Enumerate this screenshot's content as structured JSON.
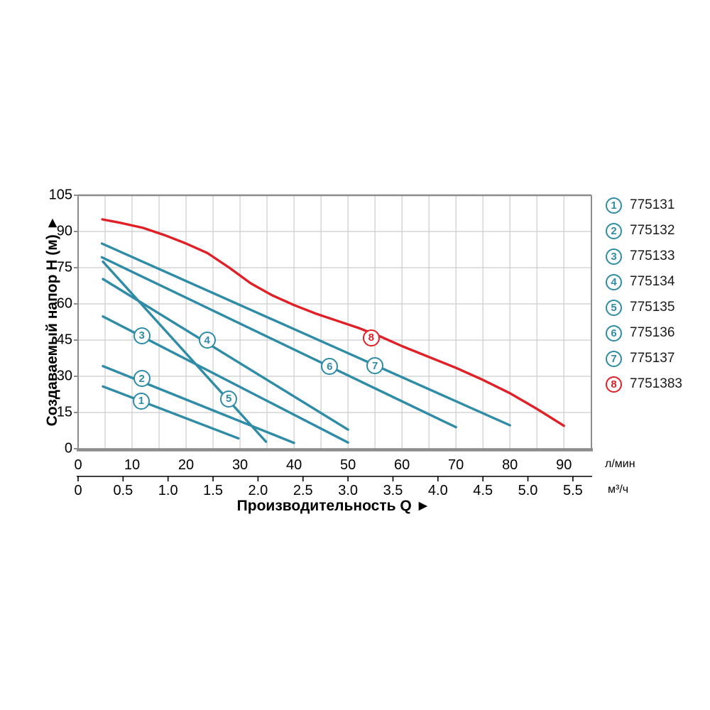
{
  "chart_data": {
    "type": "line",
    "title": "",
    "xlabel": "Производительность Q ►",
    "ylabel": "Создаваемый напор Н (м) ►",
    "x_axis_lmin": {
      "unit": "л/мин",
      "ticks": [
        0,
        10,
        20,
        30,
        40,
        50,
        60,
        70,
        80,
        90
      ],
      "range": [
        0,
        95.1
      ],
      "grid_step": 5
    },
    "x_axis_m3h": {
      "unit": "м³/ч",
      "tick_labels": [
        "0",
        "0.5",
        "1.0",
        "1.5",
        "2.0",
        "2.5",
        "3.0",
        "3.5",
        "4.0",
        "4.5",
        "5.0",
        "5.5"
      ],
      "lmin_per_unit": 16.6667
    },
    "y_axis": {
      "ticks": [
        0,
        15,
        30,
        45,
        60,
        75,
        90,
        105
      ],
      "range": [
        0,
        105
      ],
      "grid_step": 15
    },
    "colors": {
      "teal": "#2e8ca7",
      "red": "#e01f26",
      "grid": "#cccccc",
      "frame": "#8c8c8c",
      "text": "#000000"
    },
    "legend_position": "right",
    "grid": true,
    "series": [
      {
        "num": "1",
        "name": "775131",
        "color": "#2e8ca7",
        "points": [
          [
            4.6,
            25.8
          ],
          [
            29.7,
            4.3
          ]
        ],
        "label_at": [
          11.7,
          19.8
        ]
      },
      {
        "num": "2",
        "name": "775132",
        "color": "#2e8ca7",
        "points": [
          [
            4.6,
            34.2
          ],
          [
            40,
            2.4
          ]
        ],
        "label_at": [
          11.8,
          29.1
        ]
      },
      {
        "num": "3",
        "name": "775133",
        "color": "#2e8ca7",
        "points": [
          [
            4.6,
            54.8
          ],
          [
            50,
            2.6
          ]
        ],
        "label_at": [
          11.8,
          46.8
        ]
      },
      {
        "num": "4",
        "name": "775134",
        "color": "#2e8ca7",
        "points": [
          [
            4.6,
            70.3
          ],
          [
            50,
            7.9
          ]
        ],
        "label_at": [
          23.9,
          45.0
        ]
      },
      {
        "num": "5",
        "name": "775135",
        "color": "#2e8ca7",
        "points": [
          [
            4.6,
            77.5
          ],
          [
            34.8,
            2.9
          ]
        ],
        "label_at": [
          27.9,
          20.6
        ]
      },
      {
        "num": "6",
        "name": "775136",
        "color": "#2e8ca7",
        "points": [
          [
            4.4,
            79.3
          ],
          [
            70,
            8.9
          ]
        ],
        "label_at": [
          46.6,
          34.1
        ]
      },
      {
        "num": "7",
        "name": "775137",
        "color": "#2e8ca7",
        "points": [
          [
            4.4,
            85.0
          ],
          [
            80,
            9.7
          ]
        ],
        "label_at": [
          55.0,
          34.4
        ]
      },
      {
        "num": "8",
        "name": "7751383",
        "color": "#e01f26",
        "points": [
          [
            4.5,
            95
          ],
          [
            8,
            93.5
          ],
          [
            12,
            91.5
          ],
          [
            16,
            88.5
          ],
          [
            20,
            85
          ],
          [
            24,
            81
          ],
          [
            28,
            75
          ],
          [
            32,
            68.5
          ],
          [
            36,
            63.5
          ],
          [
            40,
            59.5
          ],
          [
            44,
            56
          ],
          [
            48,
            53
          ],
          [
            52,
            50
          ],
          [
            56,
            46.5
          ],
          [
            60,
            42.5
          ],
          [
            65,
            38
          ],
          [
            70,
            33.5
          ],
          [
            75,
            28.5
          ],
          [
            80,
            23
          ],
          [
            85,
            16.5
          ],
          [
            90,
            9.5
          ]
        ],
        "label_at": [
          54.3,
          45.9
        ]
      }
    ]
  },
  "legend": {
    "items": [
      {
        "num": "1",
        "code": "775131",
        "color": "#2e8ca7"
      },
      {
        "num": "2",
        "code": "775132",
        "color": "#2e8ca7"
      },
      {
        "num": "3",
        "code": "775133",
        "color": "#2e8ca7"
      },
      {
        "num": "4",
        "code": "775134",
        "color": "#2e8ca7"
      },
      {
        "num": "5",
        "code": "775135",
        "color": "#2e8ca7"
      },
      {
        "num": "6",
        "code": "775136",
        "color": "#2e8ca7"
      },
      {
        "num": "7",
        "code": "775137",
        "color": "#2e8ca7"
      },
      {
        "num": "8",
        "code": "7751383",
        "color": "#e01f26"
      }
    ]
  }
}
